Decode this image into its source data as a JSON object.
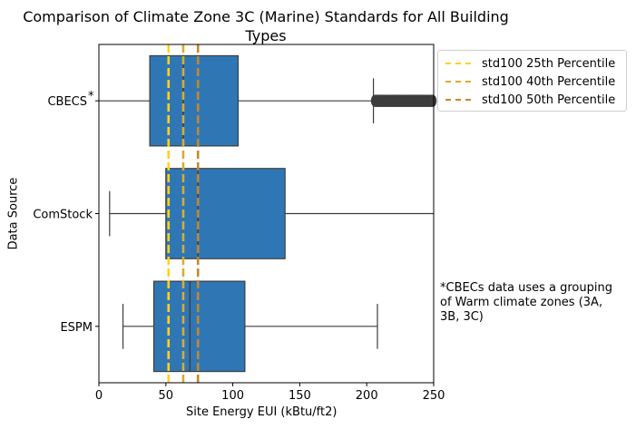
{
  "chart_data": {
    "type": "box",
    "title_lines": [
      "Comparison of Climate Zone 3C (Marine) Standards for All Building",
      "Types"
    ],
    "xlabel": "Site Energy EUI (kBtu/ft2)",
    "ylabel": "Data Source",
    "xlim": [
      0,
      250
    ],
    "x_ticks": [
      0,
      50,
      100,
      150,
      200,
      250
    ],
    "x_tick_labels": [
      "0",
      "50",
      "100",
      "150",
      "200",
      "250"
    ],
    "grid": false,
    "orientation": "horizontal",
    "box_color": "#2f77b4",
    "categories": [
      "CBECS",
      "ComStock",
      "ESPM"
    ],
    "category_markers": [
      "*",
      "",
      ""
    ],
    "boxes": [
      {
        "name": "CBECS",
        "whisker_low": 0,
        "q1": 38,
        "median": 63,
        "q3": 104,
        "whisker_high": 205,
        "outliers_from": 205,
        "outliers_to": 250
      },
      {
        "name": "ComStock",
        "whisker_low": 8,
        "q1": 50,
        "median": 74,
        "q3": 139,
        "whisker_high": 250,
        "outliers_from": null,
        "outliers_to": null
      },
      {
        "name": "ESPM",
        "whisker_low": 18,
        "q1": 41,
        "median": 68,
        "q3": 109,
        "whisker_high": 208,
        "outliers_from": null,
        "outliers_to": null
      }
    ],
    "reference_lines": [
      {
        "label": "std100 25th Percentile",
        "x": 52,
        "color": "#ffd21f"
      },
      {
        "label": "std100 40th Percentile",
        "x": 63,
        "color": "#e0a92c"
      },
      {
        "label": "std100 50th Percentile",
        "x": 74,
        "color": "#c8862a"
      }
    ],
    "legend_position": "upper right, outside plot",
    "annotation_lines": [
      "*CBECs data uses a grouping",
      "of Warm climate zones (3A,",
      "3B, 3C)"
    ]
  }
}
